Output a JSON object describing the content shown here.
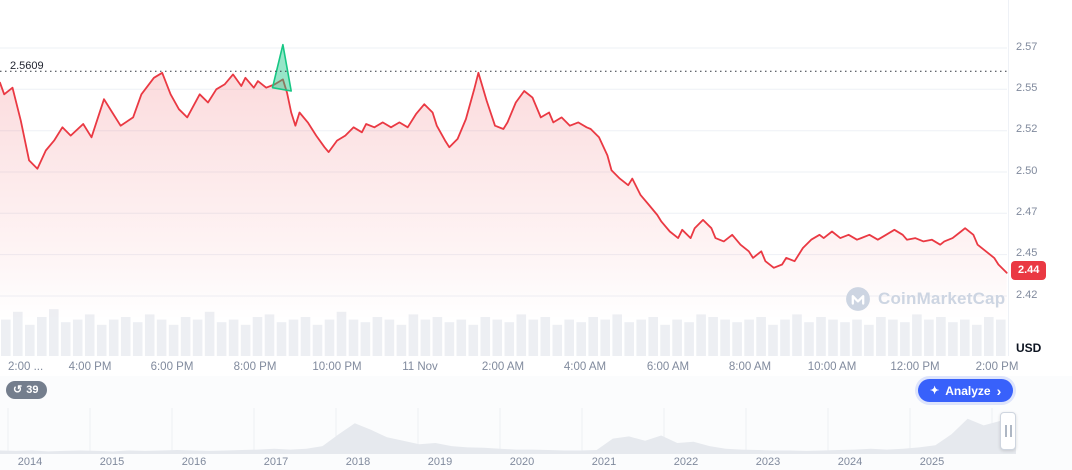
{
  "main_chart": {
    "reference_label": "2.5609",
    "current_price_label": "2.44",
    "usd_label": "USD"
  },
  "watermark": {
    "text": "CoinMarketCap"
  },
  "toolbar": {
    "history_count": "39",
    "analyze_label": "Analyze"
  },
  "icons": {
    "history_icon": "↺",
    "sparkle_icon": "✦",
    "chevron_right_icon": "›"
  },
  "colors": {
    "line_red": "#ea3943",
    "spike_green": "#16c784",
    "accent_blue": "#3861fb",
    "axis_text": "#808a9d",
    "gridline": "#eef1f6",
    "volume_bar": "#edeff3",
    "timeline_fill": "#e6e9ee",
    "badge_red": "#ea3943"
  },
  "chart_data": {
    "type": "line",
    "title": "",
    "xlabel": "",
    "ylabel": "USD",
    "ylim": [
      2.415,
      2.585
    ],
    "reference_value": 2.5609,
    "current_value": 2.44,
    "y_gridlines": [
      2.575,
      2.55,
      2.525,
      2.5,
      2.475,
      2.45,
      2.425
    ],
    "y_tick_labels": [
      "2.57",
      "2.55",
      "2.52",
      "2.50",
      "2.47",
      "2.45",
      "2.42"
    ],
    "x_tick_labels": [
      "2:00 ...",
      "4:00 PM",
      "6:00 PM",
      "8:00 PM",
      "10:00 PM",
      "11 Nov",
      "2:00 AM",
      "4:00 AM",
      "6:00 AM",
      "8:00 AM",
      "10:00 AM",
      "12:00 PM",
      "2:00 PM"
    ],
    "series": [
      {
        "name": "price_usd",
        "hours": [
          0,
          0.1,
          0.3,
          0.5,
          0.7,
          0.9,
          1.1,
          1.3,
          1.5,
          1.7,
          2,
          2.2,
          2.5,
          2.7,
          2.9,
          3.2,
          3.4,
          3.7,
          3.9,
          4.1,
          4.3,
          4.5,
          4.8,
          5,
          5.2,
          5.4,
          5.6,
          5.8,
          5.9,
          6.1,
          6.2,
          6.4,
          6.6,
          6.8,
          6.9,
          7,
          7.1,
          7.2,
          7.4,
          7.6,
          7.8,
          7.9,
          8.1,
          8.3,
          8.5,
          8.7,
          8.8,
          9,
          9.2,
          9.4,
          9.6,
          9.8,
          10,
          10.2,
          10.4,
          10.5,
          10.7,
          10.8,
          11,
          11.2,
          11.4,
          11.5,
          11.7,
          11.9,
          12.1,
          12.2,
          12.4,
          12.6,
          12.8,
          13,
          13.2,
          13.3,
          13.5,
          13.7,
          13.9,
          14.1,
          14.2,
          14.4,
          14.6,
          14.7,
          14.9,
          15.1,
          15.2,
          15.4,
          15.6,
          15.8,
          15.9,
          16.1,
          16.3,
          16.4,
          16.6,
          16.7,
          16.9,
          17.1,
          17.2,
          17.4,
          17.6,
          17.8,
          18,
          18.1,
          18.3,
          18.4,
          18.6,
          18.8,
          18.9,
          19.1,
          19.3,
          19.5,
          19.7,
          19.8,
          20,
          20.2,
          20.4,
          20.6,
          20.7,
          20.9,
          21.1,
          21.3,
          21.5,
          21.7,
          21.8,
          22,
          22.2,
          22.4,
          22.6,
          22.7,
          22.9,
          23.1,
          23.2,
          23.4,
          23.5,
          23.7,
          23.9,
          24,
          24.2
        ],
        "values": [
          2.554,
          2.547,
          2.551,
          2.531,
          2.507,
          2.502,
          2.513,
          2.519,
          2.527,
          2.522,
          2.529,
          2.521,
          2.544,
          2.536,
          2.528,
          2.533,
          2.547,
          2.557,
          2.56,
          2.547,
          2.538,
          2.533,
          2.547,
          2.542,
          2.55,
          2.553,
          2.559,
          2.552,
          2.557,
          2.551,
          2.555,
          2.551,
          2.553,
          2.556,
          2.548,
          2.536,
          2.528,
          2.536,
          2.53,
          2.522,
          2.515,
          2.512,
          2.519,
          2.522,
          2.527,
          2.524,
          2.529,
          2.527,
          2.53,
          2.527,
          2.53,
          2.527,
          2.535,
          2.541,
          2.536,
          2.528,
          2.519,
          2.515,
          2.52,
          2.532,
          2.55,
          2.56,
          2.543,
          2.528,
          2.526,
          2.53,
          2.542,
          2.549,
          2.545,
          2.533,
          2.536,
          2.53,
          2.533,
          2.528,
          2.53,
          2.527,
          2.526,
          2.521,
          2.51,
          2.501,
          2.496,
          2.492,
          2.496,
          2.486,
          2.48,
          2.474,
          2.47,
          2.464,
          2.46,
          2.465,
          2.46,
          2.466,
          2.471,
          2.466,
          2.46,
          2.458,
          2.462,
          2.456,
          2.452,
          2.448,
          2.452,
          2.446,
          2.442,
          2.444,
          2.448,
          2.446,
          2.454,
          2.459,
          2.462,
          2.46,
          2.464,
          2.46,
          2.462,
          2.459,
          2.46,
          2.462,
          2.459,
          2.462,
          2.465,
          2.462,
          2.459,
          2.46,
          2.458,
          2.459,
          2.456,
          2.458,
          2.46,
          2.464,
          2.466,
          2.462,
          2.456,
          2.452,
          2.448,
          2.444,
          2.439
        ]
      }
    ],
    "spike": {
      "name": "green_spike_marker",
      "hours": [
        6.55,
        6.8,
        7.0
      ],
      "values": [
        2.551,
        2.577,
        2.549
      ]
    },
    "volume": [
      0.7,
      0.85,
      0.6,
      0.75,
      0.9,
      0.65,
      0.7,
      0.8,
      0.6,
      0.7,
      0.75,
      0.65,
      0.8,
      0.7,
      0.6,
      0.75,
      0.7,
      0.85,
      0.65,
      0.7,
      0.6,
      0.75,
      0.8,
      0.65,
      0.7,
      0.75,
      0.6,
      0.7,
      0.85,
      0.7,
      0.65,
      0.75,
      0.7,
      0.6,
      0.8,
      0.7,
      0.75,
      0.65,
      0.7,
      0.6,
      0.75,
      0.7,
      0.65,
      0.8,
      0.7,
      0.75,
      0.6,
      0.7,
      0.65,
      0.75,
      0.7,
      0.8,
      0.65,
      0.7,
      0.75,
      0.6,
      0.7,
      0.65,
      0.8,
      0.75,
      0.7,
      0.65,
      0.7,
      0.75,
      0.6,
      0.7,
      0.8,
      0.65,
      0.75,
      0.7,
      0.65,
      0.7,
      0.6,
      0.75,
      0.7,
      0.65,
      0.8,
      0.7,
      0.75,
      0.65,
      0.7,
      0.6,
      0.75,
      0.7
    ],
    "timeline": {
      "years": [
        "2014",
        "2015",
        "2016",
        "2017",
        "2018",
        "2019",
        "2020",
        "2021",
        "2022",
        "2023",
        "2024",
        "2025"
      ],
      "values": [
        0.08,
        0.07,
        0.08,
        0.06,
        0.07,
        0.08,
        0.07,
        0.06,
        0.08,
        0.07,
        0.08,
        0.09,
        0.08,
        0.07,
        0.08,
        0.09,
        0.1,
        0.12,
        0.1,
        0.12,
        0.18,
        0.45,
        0.7,
        0.55,
        0.38,
        0.3,
        0.22,
        0.25,
        0.18,
        0.15,
        0.14,
        0.12,
        0.1,
        0.1,
        0.09,
        0.08,
        0.08,
        0.09,
        0.35,
        0.4,
        0.3,
        0.42,
        0.25,
        0.28,
        0.18,
        0.12,
        0.1,
        0.09,
        0.08,
        0.08,
        0.07,
        0.08,
        0.09,
        0.1,
        0.12,
        0.1,
        0.12,
        0.15,
        0.2,
        0.45,
        0.8,
        0.65,
        0.75,
        0.85
      ]
    }
  }
}
